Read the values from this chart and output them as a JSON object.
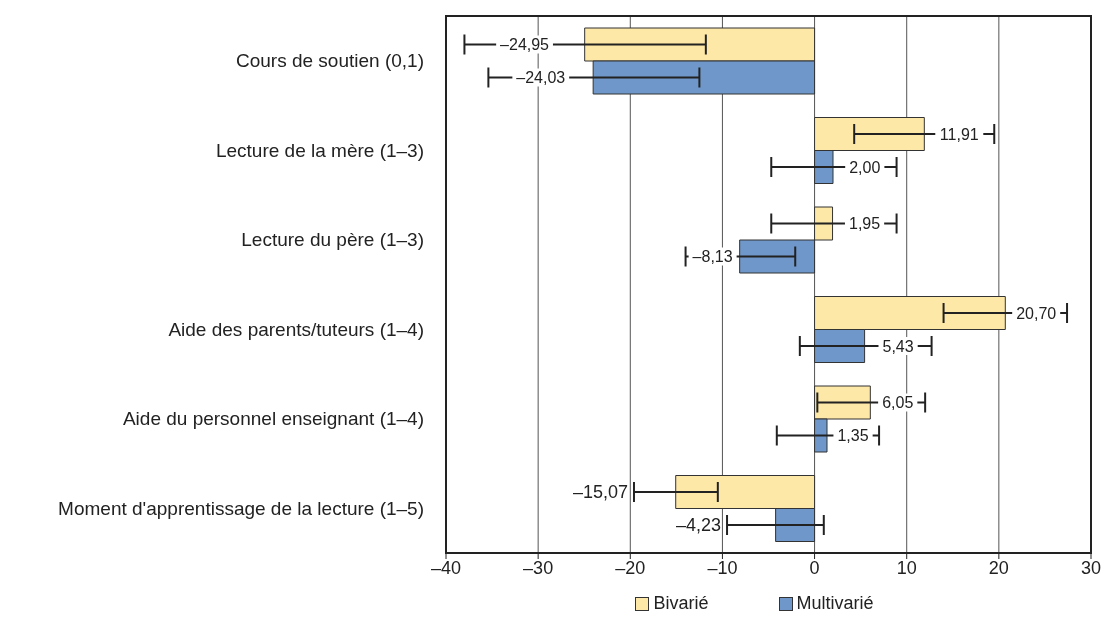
{
  "chart_data": {
    "type": "bar",
    "orientation": "horizontal",
    "categories": [
      "Cours de soutien (0,1)",
      "Lecture de la mère (1–3)",
      "Lecture du père (1–3)",
      "Aide des parents/tuteurs (1–4)",
      "Aide du personnel enseignant (1–4)",
      "Moment d'apprentissage de la lecture (1–5)"
    ],
    "series": [
      {
        "name": "Bivarié",
        "color": "#fde8a8",
        "values": [
          -24.95,
          11.91,
          1.95,
          20.7,
          6.05,
          -15.07
        ],
        "errors": [
          [
            -38.0,
            -11.8
          ],
          [
            4.3,
            19.5
          ],
          [
            -4.7,
            8.9
          ],
          [
            14.0,
            27.4
          ],
          [
            0.3,
            12.0
          ],
          [
            -19.6,
            -10.5
          ]
        ],
        "value_labels": [
          "–24,95",
          "11,91",
          "1,95",
          "20,70",
          "6,05",
          "–15,07"
        ]
      },
      {
        "name": "Multivarié",
        "color": "#6f97c9",
        "values": [
          -24.03,
          2.0,
          -8.13,
          5.43,
          1.35,
          -4.23
        ],
        "errors": [
          [
            -35.4,
            -12.5
          ],
          [
            -4.7,
            8.9
          ],
          [
            -14.0,
            -2.1
          ],
          [
            -1.6,
            12.7
          ],
          [
            -4.1,
            7.0
          ],
          [
            -9.5,
            1.0
          ]
        ],
        "value_labels": [
          "–24,03",
          "2,00",
          "–8,13",
          "5,43",
          "1,35",
          "–4,23"
        ]
      }
    ],
    "xlim": [
      -40,
      30
    ],
    "xticks": [
      {
        "value": -40,
        "label": "–40"
      },
      {
        "value": -30,
        "label": "–30"
      },
      {
        "value": -20,
        "label": "–20"
      },
      {
        "value": -10,
        "label": "–10"
      },
      0,
      10,
      20,
      30
    ],
    "grid": "x",
    "legend": "bottom"
  }
}
